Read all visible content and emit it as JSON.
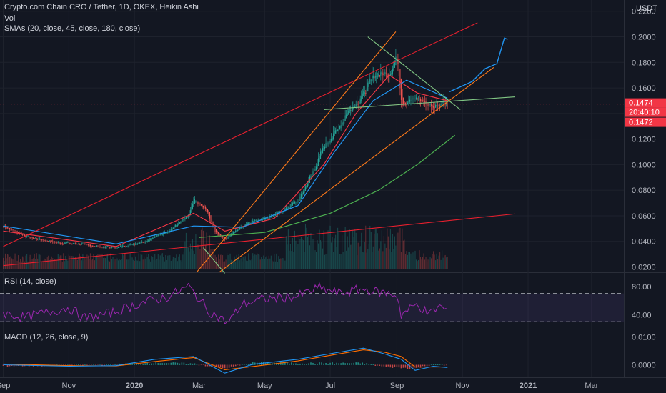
{
  "header": {
    "title": "Crypto.com Chain CRO / Tether, 1D, OKEX, Heikin Ashi",
    "vol_label": "Vol",
    "sma_label": "SMAs (20, close, 45, close, 180, close)",
    "currency": "USDT"
  },
  "rsi_panel": {
    "label": "RSI (14, close)"
  },
  "macd_panel": {
    "label": "MACD (12, 26, close, 9)"
  },
  "price_badges": [
    {
      "text": "0.1474",
      "color": "#f23645"
    },
    {
      "text": "20:40:10",
      "color": "#f23645"
    },
    {
      "text": "0.1472",
      "color": "#f23645"
    }
  ],
  "colors": {
    "up": "#26a69a",
    "down": "#ef5350",
    "sma20": "#f23645",
    "sma45": "#2196f3",
    "sma180": "#4caf50",
    "rsi": "#9c27b0",
    "macd": "#2196f3",
    "signal": "#ff6d00",
    "trend_red": "#e8202e",
    "trend_orange": "#ff7a1a",
    "trend_green": "#81c784",
    "projection": "#2196f3"
  },
  "chart_data": [
    {
      "type": "candlestick",
      "title": "Crypto.com Chain CRO / Tether, 1D, OKEX, Heikin Ashi",
      "x_ticks": [
        "Sep",
        "Nov",
        "2020",
        "Mar",
        "May",
        "Jul",
        "Sep",
        "Nov",
        "2021",
        "Mar"
      ],
      "y_ticks": [
        "0.0200",
        "0.0400",
        "0.0600",
        "0.0800",
        "0.1000",
        "0.1200",
        "0.1400",
        "0.1600",
        "0.1800",
        "0.2000",
        "0.2200"
      ],
      "ylim": [
        0.0158,
        0.2288
      ],
      "y_scale": "linear",
      "grid": true,
      "close_key_points": [
        [
          "2019-09-01",
          0.052
        ],
        [
          "2019-09-25",
          0.043
        ],
        [
          "2019-10-20",
          0.039
        ],
        [
          "2019-11-10",
          0.038
        ],
        [
          "2019-11-25",
          0.036
        ],
        [
          "2019-12-15",
          0.035
        ],
        [
          "2020-01-10",
          0.04
        ],
        [
          "2020-02-01",
          0.048
        ],
        [
          "2020-02-20",
          0.06
        ],
        [
          "2020-02-25",
          0.072
        ],
        [
          "2020-03-08",
          0.064
        ],
        [
          "2020-03-15",
          0.048
        ],
        [
          "2020-03-25",
          0.042
        ],
        [
          "2020-04-15",
          0.055
        ],
        [
          "2020-05-10",
          0.06
        ],
        [
          "2020-06-01",
          0.072
        ],
        [
          "2020-06-15",
          0.095
        ],
        [
          "2020-06-25",
          0.115
        ],
        [
          "2020-07-05",
          0.125
        ],
        [
          "2020-07-20",
          0.145
        ],
        [
          "2020-08-01",
          0.155
        ],
        [
          "2020-08-10",
          0.17
        ],
        [
          "2020-08-25",
          0.172
        ],
        [
          "2020-09-01",
          0.185
        ],
        [
          "2020-09-05",
          0.148
        ],
        [
          "2020-09-20",
          0.152
        ],
        [
          "2020-10-05",
          0.145
        ],
        [
          "2020-10-12",
          0.15
        ],
        [
          "2020-10-18",
          0.147
        ]
      ],
      "sma_series": [
        {
          "name": "SMA 20",
          "points": [
            [
              "2019-09-01",
              0.048
            ],
            [
              "2019-12-15",
              0.036
            ],
            [
              "2020-02-25",
              0.062
            ],
            [
              "2020-03-25",
              0.048
            ],
            [
              "2020-05-10",
              0.058
            ],
            [
              "2020-06-25",
              0.1
            ],
            [
              "2020-07-25",
              0.14
            ],
            [
              "2020-08-25",
              0.17
            ],
            [
              "2020-09-20",
              0.156
            ],
            [
              "2020-10-18",
              0.15
            ]
          ]
        },
        {
          "name": "SMA 45",
          "points": [
            [
              "2019-09-01",
              0.052
            ],
            [
              "2019-12-15",
              0.038
            ],
            [
              "2020-02-25",
              0.052
            ],
            [
              "2020-04-10",
              0.051
            ],
            [
              "2020-06-01",
              0.068
            ],
            [
              "2020-07-05",
              0.11
            ],
            [
              "2020-08-10",
              0.15
            ],
            [
              "2020-09-10",
              0.166
            ],
            [
              "2020-10-18",
              0.152
            ]
          ]
        },
        {
          "name": "SMA 180",
          "points": [
            [
              "2020-03-01",
              0.043
            ],
            [
              "2020-05-01",
              0.047
            ],
            [
              "2020-07-01",
              0.062
            ],
            [
              "2020-08-15",
              0.08
            ],
            [
              "2020-09-20",
              0.1
            ],
            [
              "2020-10-25",
              0.123
            ]
          ]
        }
      ],
      "projection": [
        [
          "2020-10-20",
          0.157
        ],
        [
          "2020-11-10",
          0.165
        ],
        [
          "2020-11-22",
          0.175
        ],
        [
          "2020-12-03",
          0.179
        ],
        [
          "2020-12-10",
          0.199
        ],
        [
          "2020-12-13",
          0.198
        ]
      ],
      "trendlines": [
        {
          "color": "red",
          "from": [
            "2019-09-01",
            0.021
          ],
          "to": [
            "2020-12-20",
            0.0615
          ]
        },
        {
          "color": "red",
          "from": [
            "2019-09-01",
            0.036
          ],
          "to": [
            "2020-11-15",
            0.211
          ]
        },
        {
          "color": "orange",
          "from": [
            "2020-03-20",
            0.016
          ],
          "to": [
            "2020-11-30",
            0.176
          ]
        },
        {
          "color": "orange",
          "from": [
            "2020-02-28",
            0.016
          ],
          "to": [
            "2020-08-31",
            0.204
          ]
        },
        {
          "color": "green",
          "from": [
            "2020-06-25",
            0.143
          ],
          "to": [
            "2020-12-20",
            0.153
          ]
        },
        {
          "color": "green",
          "from": [
            "2020-08-05",
            0.2
          ],
          "to": [
            "2020-10-30",
            0.143
          ]
        },
        {
          "color": "green",
          "from": [
            "2020-03-05",
            0.035
          ],
          "to": [
            "2020-03-25",
            0.015
          ]
        }
      ],
      "last_price": "0.1474"
    },
    {
      "type": "line",
      "title": "RSI (14, close)",
      "y_ticks": [
        "40.00",
        "80.00"
      ],
      "ylim": [
        20,
        97
      ],
      "bands": [
        30,
        70
      ],
      "points": [
        [
          "2019-09-01",
          42
        ],
        [
          "2019-09-20",
          36
        ],
        [
          "2019-10-15",
          44
        ],
        [
          "2019-11-01",
          50
        ],
        [
          "2019-11-15",
          35
        ],
        [
          "2019-12-10",
          42
        ],
        [
          "2020-01-10",
          58
        ],
        [
          "2020-02-01",
          65
        ],
        [
          "2020-02-20",
          80
        ],
        [
          "2020-02-27",
          68
        ],
        [
          "2020-03-10",
          45
        ],
        [
          "2020-03-28",
          28
        ],
        [
          "2020-04-10",
          55
        ],
        [
          "2020-05-01",
          62
        ],
        [
          "2020-06-01",
          66
        ],
        [
          "2020-06-20",
          78
        ],
        [
          "2020-07-10",
          70
        ],
        [
          "2020-07-30",
          76
        ],
        [
          "2020-08-15",
          72
        ],
        [
          "2020-09-01",
          68
        ],
        [
          "2020-09-05",
          40
        ],
        [
          "2020-09-20",
          55
        ],
        [
          "2020-10-01",
          40
        ],
        [
          "2020-10-10",
          52
        ],
        [
          "2020-10-18",
          46
        ]
      ]
    },
    {
      "type": "line",
      "title": "MACD (12, 26, close, 9)",
      "y_ticks": [
        "0.0000",
        "0.0100"
      ],
      "ylim": [
        -0.0045,
        0.0125
      ],
      "macd": [
        [
          "2019-09-01",
          0.0
        ],
        [
          "2019-11-01",
          -0.0005
        ],
        [
          "2019-12-15",
          -0.0003
        ],
        [
          "2020-01-20",
          0.002
        ],
        [
          "2020-02-25",
          0.003
        ],
        [
          "2020-03-25",
          -0.003
        ],
        [
          "2020-04-20",
          0.0002
        ],
        [
          "2020-06-01",
          0.002
        ],
        [
          "2020-07-01",
          0.004
        ],
        [
          "2020-08-01",
          0.006
        ],
        [
          "2020-08-20",
          0.004
        ],
        [
          "2020-09-05",
          0.002
        ],
        [
          "2020-09-18",
          -0.002
        ],
        [
          "2020-10-05",
          -0.0005
        ],
        [
          "2020-10-18",
          -0.001
        ]
      ],
      "signal": [
        [
          "2019-09-01",
          0.0003
        ],
        [
          "2019-11-01",
          -0.0003
        ],
        [
          "2019-12-15",
          -0.0004
        ],
        [
          "2020-01-20",
          0.0012
        ],
        [
          "2020-02-25",
          0.0026
        ],
        [
          "2020-03-25",
          -0.0018
        ],
        [
          "2020-04-20",
          -0.0006
        ],
        [
          "2020-06-01",
          0.0014
        ],
        [
          "2020-07-01",
          0.0034
        ],
        [
          "2020-08-01",
          0.0054
        ],
        [
          "2020-08-20",
          0.0046
        ],
        [
          "2020-09-05",
          0.003
        ],
        [
          "2020-09-18",
          -0.0008
        ],
        [
          "2020-10-05",
          -0.0008
        ],
        [
          "2020-10-18",
          -0.0008
        ]
      ]
    }
  ]
}
